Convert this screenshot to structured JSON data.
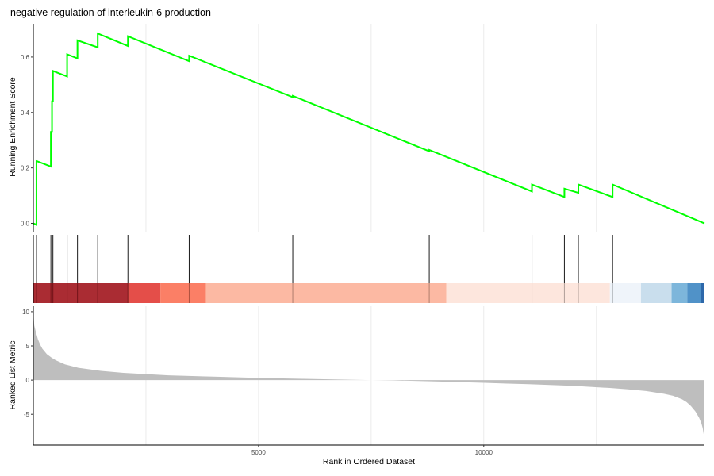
{
  "chart_data": {
    "type": "line",
    "title": "negative regulation of interleukin-6 production",
    "xlabel": "Rank in Ordered Dataset",
    "xlim": [
      0,
      14900
    ],
    "x_ticks": [
      5000,
      10000
    ],
    "grid": true,
    "panels": {
      "running_score": {
        "ylabel": "Running Enrichment Score",
        "ylim": [
          -0.03,
          0.72
        ],
        "y_ticks": [
          0.0,
          0.2,
          0.4,
          0.6
        ],
        "color": "#00FF00",
        "series": [
          {
            "x": [
              0,
              70,
              70,
              390,
              390,
              415,
              415,
              435,
              435,
              750,
              750,
              980,
              980,
              1430,
              1430,
              2100,
              2100,
              3460,
              3460,
              5760,
              5760,
              8790,
              8790,
              11070,
              11070,
              11790,
              11790,
              12100,
              12100,
              12860,
              12860,
              14900
            ],
            "y": [
              0.0,
              -0.005,
              0.225,
              0.205,
              0.33,
              0.33,
              0.44,
              0.44,
              0.55,
              0.53,
              0.61,
              0.595,
              0.66,
              0.635,
              0.685,
              0.64,
              0.675,
              0.585,
              0.605,
              0.455,
              0.46,
              0.26,
              0.265,
              0.115,
              0.14,
              0.095,
              0.125,
              0.11,
              0.14,
              0.095,
              0.14,
              0.0
            ]
          }
        ]
      },
      "gene_hits": {
        "positions": [
          70,
          390,
          415,
          435,
          750,
          980,
          1430,
          2100,
          3460,
          5760,
          8790,
          11070,
          11790,
          12100,
          12860
        ]
      },
      "rank_heatmap": {
        "segments": [
          {
            "start": 0,
            "end": 2100,
            "color": "#A31A22"
          },
          {
            "start": 2100,
            "end": 2820,
            "color": "#E23F3A"
          },
          {
            "start": 2820,
            "end": 3830,
            "color": "#FB7459"
          },
          {
            "start": 3830,
            "end": 9170,
            "color": "#FCB39B"
          },
          {
            "start": 9170,
            "end": 12800,
            "color": "#FDE4DA"
          },
          {
            "start": 12800,
            "end": 13490,
            "color": "#EEF3FA"
          },
          {
            "start": 13490,
            "end": 14170,
            "color": "#C4DBEB"
          },
          {
            "start": 14170,
            "end": 14520,
            "color": "#72B0D8"
          },
          {
            "start": 14520,
            "end": 14820,
            "color": "#4189C3"
          },
          {
            "start": 14820,
            "end": 14900,
            "color": "#1B5BA3"
          }
        ]
      },
      "ranked_metric": {
        "ylabel": "Ranked List Metric",
        "ylim": [
          -9.5,
          10.8
        ],
        "y_ticks": [
          -5,
          0,
          5,
          10
        ],
        "fill_color": "#BEBEBE",
        "series": [
          {
            "x": [
              0,
              20,
              50,
              100,
              150,
              200,
              300,
              400,
              500,
              700,
              1000,
              1500,
              2000,
              3000,
              4000,
              5000,
              6000,
              7000,
              7500,
              8000,
              9000,
              10000,
              11000,
              12000,
              12800,
              13200,
              13600,
              14000,
              14200,
              14400,
              14500,
              14600,
              14700,
              14780,
              14830,
              14860,
              14880,
              14900
            ],
            "y": [
              10.0,
              8.0,
              7.2,
              6.0,
              5.2,
              4.6,
              3.8,
              3.3,
              2.9,
              2.3,
              1.8,
              1.35,
              1.05,
              0.7,
              0.5,
              0.32,
              0.18,
              0.05,
              0.0,
              -0.05,
              -0.2,
              -0.4,
              -0.6,
              -0.85,
              -1.15,
              -1.35,
              -1.6,
              -2.0,
              -2.3,
              -2.8,
              -3.2,
              -3.8,
              -4.6,
              -5.5,
              -6.3,
              -7.0,
              -7.8,
              -8.6
            ]
          }
        ]
      }
    }
  }
}
